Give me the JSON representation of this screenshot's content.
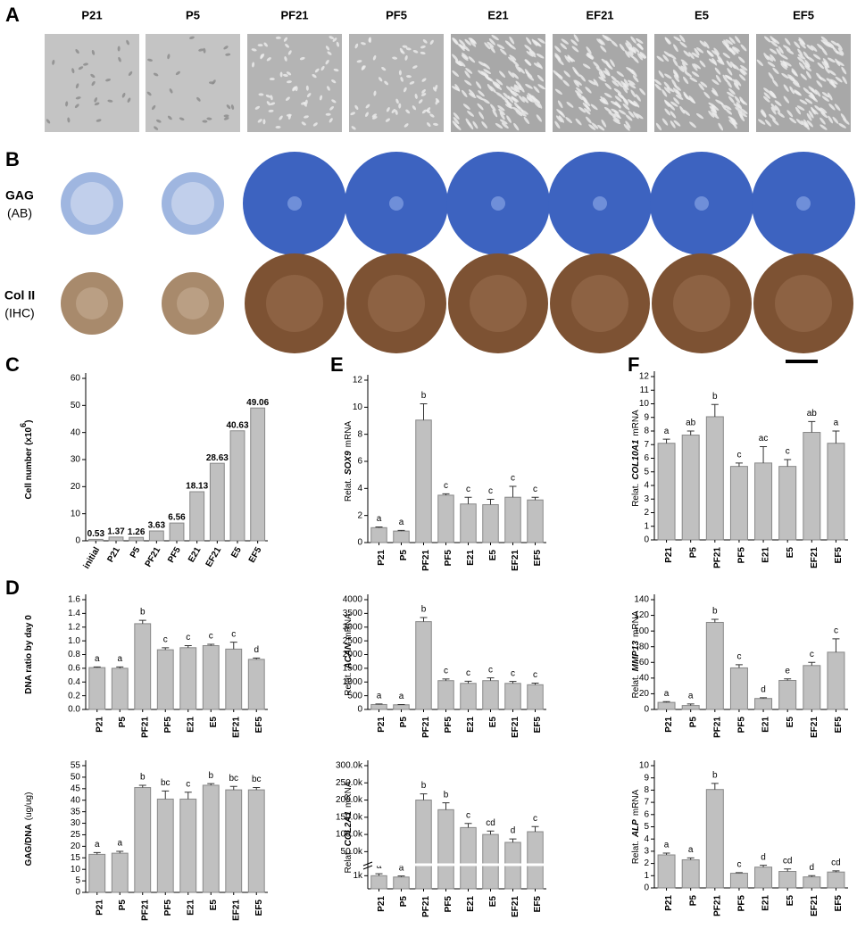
{
  "panel_labels": [
    "A",
    "B",
    "C",
    "D",
    "E",
    "F"
  ],
  "micrograph_labels": [
    "P21",
    "P5",
    "PF21",
    "PF5",
    "E21",
    "EF21",
    "E5",
    "EF5"
  ],
  "stain_labels": {
    "gag": [
      "GAG",
      "(AB)"
    ],
    "col": [
      "Col II",
      "(IHC)"
    ]
  },
  "chart_data": [
    {
      "type": "bar",
      "ylabel": [
        "Cell number (x10",
        "6",
        ")"
      ],
      "ylabel_style": "superscript",
      "categories": [
        "initial",
        "P21",
        "P5",
        "PF21",
        "PF5",
        "E21",
        "EF21",
        "E5",
        "EF5"
      ],
      "values": [
        0.53,
        1.37,
        1.26,
        3.63,
        6.56,
        18.13,
        28.63,
        40.63,
        49.06
      ],
      "ylim": [
        0,
        60
      ],
      "yticks": [
        0,
        10,
        20,
        30,
        40,
        50,
        60
      ],
      "color": "#c0c0c0",
      "value_labels_shown": true
    },
    {
      "type": "bar",
      "ylabel": [
        "DNA ratio by day 0"
      ],
      "ylabel_style": "bold",
      "categories": [
        "P21",
        "P5",
        "PF21",
        "PF5",
        "E21",
        "E5",
        "EF21",
        "EF5"
      ],
      "values": [
        0.61,
        0.6,
        1.25,
        0.87,
        0.9,
        0.93,
        0.88,
        0.73
      ],
      "errors": [
        0.01,
        0.02,
        0.05,
        0.03,
        0.03,
        0.02,
        0.1,
        0.02
      ],
      "letters": [
        "a",
        "a",
        "b",
        "c",
        "c",
        "c",
        "c",
        "d"
      ],
      "ylim": [
        0,
        1.6
      ],
      "yticks": [
        {
          "value": 0,
          "label": "0.0"
        },
        0.2,
        0.4,
        0.6,
        0.8,
        {
          "value": 1,
          "label": "1.0"
        },
        1.2,
        1.4,
        1.6
      ],
      "color": "#c0c0c0"
    },
    {
      "type": "bar",
      "ylabel": [
        "GAG/DNA",
        "(ug/ug)"
      ],
      "ylabel_style": "bold-first",
      "categories": [
        "P21",
        "P5",
        "PF21",
        "PF5",
        "E21",
        "E5",
        "EF21",
        "EF5"
      ],
      "values": [
        16.5,
        17,
        45.5,
        40.5,
        40.5,
        46.5,
        44.5,
        44.5
      ],
      "errors": [
        0.8,
        0.8,
        1,
        3.5,
        3,
        0.7,
        1.5,
        1
      ],
      "letters": [
        "a",
        "a",
        "b",
        "bc",
        "c",
        "b",
        "bc",
        "bc"
      ],
      "ylim": [
        0,
        55
      ],
      "yticks": [
        0,
        5,
        10,
        15,
        20,
        25,
        30,
        35,
        40,
        45,
        50,
        55
      ],
      "color": "#c0c0c0"
    },
    {
      "type": "bar",
      "ylabel": [
        "Relat.",
        "SOX9",
        "mRNA"
      ],
      "ylabel_style": "gene",
      "categories": [
        "P21",
        "P5",
        "PF21",
        "PF5",
        "E21",
        "E5",
        "EF21",
        "EF5"
      ],
      "values": [
        1.1,
        0.85,
        9.05,
        3.5,
        2.85,
        2.8,
        3.35,
        3.15
      ],
      "errors": [
        0.05,
        0.05,
        1.2,
        0.1,
        0.5,
        0.4,
        0.8,
        0.2
      ],
      "letters": [
        "a",
        "a",
        "b",
        "c",
        "c",
        "c",
        "c",
        "c"
      ],
      "ylim": [
        0,
        12
      ],
      "yticks": [
        0,
        2,
        4,
        6,
        8,
        10,
        12
      ],
      "color": "#c0c0c0"
    },
    {
      "type": "bar",
      "ylabel": [
        "Relat.",
        "ACAN",
        "mRNA"
      ],
      "ylabel_style": "gene",
      "categories": [
        "P21",
        "P5",
        "PF21",
        "PF5",
        "E21",
        "E5",
        "EF21",
        "EF5"
      ],
      "values": [
        180,
        170,
        3200,
        1050,
        950,
        1050,
        950,
        900
      ],
      "errors": [
        20,
        10,
        150,
        60,
        80,
        100,
        70,
        60
      ],
      "letters": [
        "a",
        "a",
        "b",
        "c",
        "c",
        "c",
        "c",
        "c"
      ],
      "ylim": [
        0,
        4000
      ],
      "yticks": [
        0,
        500,
        1000,
        1500,
        2000,
        2500,
        3000,
        3500,
        4000
      ],
      "color": "#c0c0c0"
    },
    {
      "type": "bar",
      "ylabel": [
        "Relat.",
        "COL2A1",
        "mRNA"
      ],
      "ylabel_style": "gene",
      "categories": [
        "P21",
        "P5",
        "PF21",
        "PF5",
        "E21",
        "E5",
        "EF21",
        "EF5"
      ],
      "values": [
        1000,
        900,
        200000,
        172000,
        120000,
        100000,
        77000,
        108000
      ],
      "errors": [
        150,
        80,
        18000,
        20000,
        12000,
        10000,
        10000,
        15000
      ],
      "letters": [
        "a",
        "a",
        "b",
        "b",
        "c",
        "cd",
        "d",
        "c"
      ],
      "ylim": [
        0,
        300000
      ],
      "ybreak": [
        1500,
        25000
      ],
      "yticks": [
        {
          "value": 1000,
          "label": "1k"
        },
        {
          "value": 50000,
          "label": "50.0k"
        },
        {
          "value": 100000,
          "label": "100.0k"
        },
        {
          "value": 150000,
          "label": "150.0k"
        },
        {
          "value": 200000,
          "label": "200.0k"
        },
        {
          "value": 250000,
          "label": "250.0k"
        },
        {
          "value": 300000,
          "label": "300.0k"
        }
      ],
      "color": "#c0c0c0"
    },
    {
      "type": "bar",
      "ylabel": [
        "Relat.",
        "COL10A1",
        "mRNA"
      ],
      "ylabel_style": "gene",
      "categories": [
        "P21",
        "P5",
        "PF21",
        "PF5",
        "E21",
        "E5",
        "EF21",
        "EF5"
      ],
      "values": [
        7.1,
        7.7,
        9.05,
        5.4,
        5.65,
        5.4,
        7.9,
        7.1
      ],
      "errors": [
        0.3,
        0.3,
        0.9,
        0.25,
        1.2,
        0.5,
        0.8,
        0.9
      ],
      "letters": [
        "a",
        "ab",
        "b",
        "c",
        "ac",
        "c",
        "ab",
        "a"
      ],
      "ylim": [
        0,
        12
      ],
      "yticks": [
        0,
        1,
        2,
        3,
        4,
        5,
        6,
        7,
        8,
        9,
        10,
        11,
        12
      ],
      "color": "#c0c0c0"
    },
    {
      "type": "bar",
      "ylabel": [
        "Relat.",
        "MMP13",
        "mRNA"
      ],
      "ylabel_style": "gene",
      "categories": [
        "P21",
        "P5",
        "PF21",
        "PF5",
        "E21",
        "E5",
        "EF21",
        "EF5"
      ],
      "values": [
        9,
        5,
        111,
        53,
        14,
        37,
        56,
        73
      ],
      "errors": [
        1,
        2,
        4,
        4,
        1,
        2,
        4,
        17
      ],
      "letters": [
        "a",
        "a",
        "b",
        "c",
        "d",
        "e",
        "c",
        "c"
      ],
      "ylim": [
        0,
        140
      ],
      "yticks": [
        0,
        20,
        40,
        60,
        80,
        100,
        120,
        140
      ],
      "color": "#c0c0c0"
    },
    {
      "type": "bar",
      "ylabel": [
        "Relat.",
        "ALP",
        "mRNA"
      ],
      "ylabel_style": "gene",
      "categories": [
        "P21",
        "P5",
        "PF21",
        "PF5",
        "E21",
        "E5",
        "EF21",
        "EF5"
      ],
      "values": [
        2.7,
        2.3,
        8.05,
        1.2,
        1.7,
        1.35,
        0.9,
        1.3
      ],
      "errors": [
        0.15,
        0.15,
        0.5,
        0.05,
        0.15,
        0.2,
        0.1,
        0.1
      ],
      "letters": [
        "a",
        "a",
        "b",
        "c",
        "d",
        "cd",
        "d",
        "cd"
      ],
      "ylim": [
        0,
        10
      ],
      "yticks": [
        0,
        1,
        2,
        3,
        4,
        5,
        6,
        7,
        8,
        9,
        10
      ],
      "color": "#c0c0c0"
    }
  ]
}
